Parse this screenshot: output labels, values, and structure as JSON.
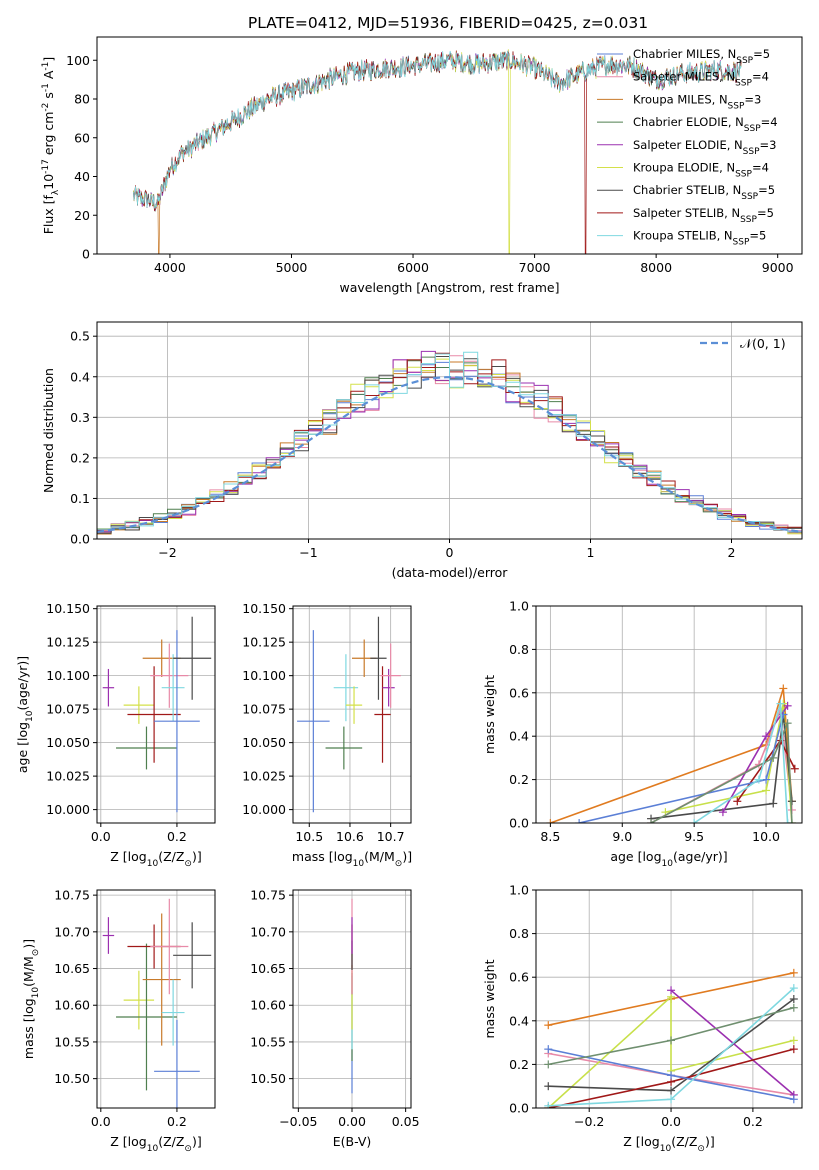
{
  "figure_title": "PLATE=0412, MJD=51936, FIBERID=0425, z=0.031",
  "colors": {
    "Chabrier MILES": "#5b7fd6",
    "Salpeter MILES": "#e88aa8",
    "Kroupa MILES": "#c87a2a",
    "Chabrier ELODIE": "#4f7f4f",
    "Salpeter ELODIE": "#9b30b0",
    "Kroupa ELODIE": "#d4e04a",
    "Chabrier STELIB": "#4a4a4a",
    "Salpeter STELIB": "#a01818",
    "Kroupa STELIB": "#7fd8e0",
    "normal": "#5b8fd6",
    "weight_line_1": "#e07b20",
    "weight_line_2": "#e88aa8",
    "weight_line_3": "#c8e04a",
    "weight_line_4": "#4a4a4a",
    "weight_line_5": "#9b30b0",
    "weight_line_6": "#a01818",
    "weight_line_7": "#5b7fd6",
    "weight_line_8": "#6f8f6f",
    "weight_line_9": "#7fd8e0"
  },
  "chart_data": [
    {
      "id": "spectrum",
      "type": "line",
      "xlabel": "wavelength [Angstrom, rest frame]",
      "ylabel": "Flux [f",
      "ylabel_sub": "λ",
      "ylabel_tail": "10",
      "ylabel_exp1": "-17",
      "ylabel_unit": " erg cm",
      "ylabel_exp2": "-2",
      "ylabel_unit2": " s",
      "ylabel_exp3": "-1",
      "ylabel_unit3": " A",
      "ylabel_exp4": "-1",
      "ylabel_close": "]",
      "xlim": [
        3400,
        9200
      ],
      "ylim": [
        0,
        112
      ],
      "xticks": [
        "4000",
        "5000",
        "6000",
        "7000",
        "8000",
        "9000"
      ],
      "xtick_values": [
        4000,
        5000,
        6000,
        7000,
        8000,
        9000
      ],
      "yticks": [
        "0",
        "20",
        "40",
        "60",
        "80",
        "100"
      ],
      "ytick_values": [
        0,
        20,
        40,
        60,
        80,
        100
      ],
      "legend_position": "top-right",
      "continuum": {
        "x": [
          3700,
          3900,
          4000,
          4100,
          4300,
          4500,
          4800,
          5000,
          5200,
          5500,
          5800,
          6000,
          6300,
          6500,
          6800,
          7000,
          7200,
          7400,
          7600,
          7800,
          8000,
          8200,
          8500,
          8700
        ],
        "y": [
          30,
          26,
          44,
          52,
          60,
          68,
          80,
          84,
          88,
          94,
          96,
          97,
          100,
          98,
          100,
          96,
          88,
          94,
          98,
          97,
          90,
          93,
          95,
          94
        ]
      },
      "gaps": [
        {
          "x": 3910,
          "series": "Kroupa MILES"
        },
        {
          "x": 6790,
          "series": "Kroupa ELODIE"
        },
        {
          "x": 7420,
          "series": "Salpeter STELIB"
        }
      ],
      "legend": [
        {
          "name": "Chabrier MILES",
          "label": "Chabrier MILES, N",
          "sub": "SSP",
          "tail": "=5"
        },
        {
          "name": "Salpeter MILES",
          "label": "Salpeter MILES, N",
          "sub": "SSP",
          "tail": "=4"
        },
        {
          "name": "Kroupa MILES",
          "label": "Kroupa MILES, N",
          "sub": "SSP",
          "tail": "=3"
        },
        {
          "name": "Chabrier ELODIE",
          "label": "Chabrier ELODIE, N",
          "sub": "SSP",
          "tail": "=4"
        },
        {
          "name": "Salpeter ELODIE",
          "label": "Salpeter ELODIE, N",
          "sub": "SSP",
          "tail": "=3"
        },
        {
          "name": "Kroupa ELODIE",
          "label": "Kroupa ELODIE, N",
          "sub": "SSP",
          "tail": "=4"
        },
        {
          "name": "Chabrier STELIB",
          "label": "Chabrier STELIB, N",
          "sub": "SSP",
          "tail": "=5"
        },
        {
          "name": "Salpeter STELIB",
          "label": "Salpeter STELIB, N",
          "sub": "SSP",
          "tail": "=5"
        },
        {
          "name": "Kroupa STELIB",
          "label": "Kroupa STELIB, N",
          "sub": "SSP",
          "tail": "=5"
        }
      ]
    },
    {
      "id": "residuals",
      "type": "histogram",
      "xlabel": "(data-model)/error",
      "ylabel": "Normed distribution",
      "xlim": [
        -2.5,
        2.5
      ],
      "ylim": [
        0,
        0.535
      ],
      "xticks": [
        "−2",
        "−1",
        "0",
        "1",
        "2"
      ],
      "xtick_values": [
        -2,
        -1,
        0,
        1,
        2
      ],
      "yticks": [
        "0.0",
        "0.1",
        "0.2",
        "0.3",
        "0.4",
        "0.5"
      ],
      "ytick_values": [
        0,
        0.1,
        0.2,
        0.3,
        0.4,
        0.5
      ],
      "grid": true,
      "legend_position": "top-right",
      "normal_label": "𝒩(0, 1)",
      "bin_width": 0.1
    },
    {
      "id": "age_vs_Z",
      "type": "errorbar",
      "xlabel": "Z [log",
      "xlabel_sub": "10",
      "xlabel_tail": "(Z/Z",
      "xlabel_tail_sub": "⊙",
      "xlabel_close": ")]",
      "ylabel": "age  [log",
      "ylabel_sub": "10",
      "ylabel_tail": "(age/yr)]",
      "xlim": [
        -0.01,
        0.3
      ],
      "ylim": [
        9.99,
        10.152
      ],
      "xticks": [
        "0.0",
        "0.2"
      ],
      "xtick_values": [
        0,
        0.2
      ],
      "yticks": [
        "10.000",
        "10.025",
        "10.050",
        "10.075",
        "10.100",
        "10.125",
        "10.150"
      ],
      "ytick_values": [
        10.0,
        10.025,
        10.05,
        10.075,
        10.1,
        10.125,
        10.15
      ],
      "grid": true,
      "points": [
        {
          "series": "Salpeter ELODIE",
          "x": 0.02,
          "xerr": 0.015,
          "y": 10.091,
          "yerr": 0.014
        },
        {
          "series": "Kroupa ELODIE",
          "x": 0.1,
          "xerr": 0.04,
          "y": 10.078,
          "yerr": 0.014
        },
        {
          "series": "Chabrier ELODIE",
          "x": 0.12,
          "xerr": 0.08,
          "y": 10.046,
          "yerr": 0.016
        },
        {
          "series": "Salpeter STELIB",
          "x": 0.14,
          "xerr": 0.07,
          "y": 10.071,
          "yerr": 0.036
        },
        {
          "series": "Kroupa MILES",
          "x": 0.16,
          "xerr": 0.05,
          "y": 10.113,
          "yerr": 0.014
        },
        {
          "series": "Salpeter MILES",
          "x": 0.18,
          "xerr": 0.05,
          "y": 10.1,
          "yerr": 0.024
        },
        {
          "series": "Kroupa STELIB",
          "x": 0.19,
          "xerr": 0.03,
          "y": 10.091,
          "yerr": 0.025
        },
        {
          "series": "Chabrier MILES",
          "x": 0.2,
          "xerr": 0.06,
          "y": 10.066,
          "yerr": 0.068
        },
        {
          "series": "Chabrier STELIB",
          "x": 0.24,
          "xerr": 0.05,
          "y": 10.113,
          "yerr": 0.031
        }
      ]
    },
    {
      "id": "age_vs_mass",
      "type": "errorbar",
      "xlabel": "mass [log",
      "xlabel_sub": "10",
      "xlabel_tail": "(M/M",
      "xlabel_tail_sub": "⊙",
      "xlabel_close": ")]",
      "xlim": [
        10.46,
        10.75
      ],
      "ylim": [
        9.99,
        10.152
      ],
      "xticks": [
        "10.5",
        "10.6",
        "10.7"
      ],
      "xtick_values": [
        10.5,
        10.6,
        10.7
      ],
      "yticks": [
        "10.000",
        "10.025",
        "10.050",
        "10.075",
        "10.100",
        "10.125",
        "10.150"
      ],
      "ytick_values": [
        10.0,
        10.025,
        10.05,
        10.075,
        10.1,
        10.125,
        10.15
      ],
      "grid": true,
      "points": [
        {
          "series": "Chabrier MILES",
          "x": 10.51,
          "xerr": 0.04,
          "y": 10.066,
          "yerr": 0.068
        },
        {
          "series": "Chabrier ELODIE",
          "x": 10.585,
          "xerr": 0.045,
          "y": 10.046,
          "yerr": 0.016
        },
        {
          "series": "Kroupa STELIB",
          "x": 10.59,
          "xerr": 0.03,
          "y": 10.091,
          "yerr": 0.025
        },
        {
          "series": "Kroupa ELODIE",
          "x": 10.61,
          "xerr": 0.02,
          "y": 10.078,
          "yerr": 0.014
        },
        {
          "series": "Kroupa MILES",
          "x": 10.635,
          "xerr": 0.03,
          "y": 10.113,
          "yerr": 0.014
        },
        {
          "series": "Salpeter STELIB",
          "x": 10.68,
          "xerr": 0.02,
          "y": 10.071,
          "yerr": 0.036
        },
        {
          "series": "Chabrier STELIB",
          "x": 10.67,
          "xerr": 0.02,
          "y": 10.113,
          "yerr": 0.031
        },
        {
          "series": "Salpeter ELODIE",
          "x": 10.695,
          "xerr": 0.015,
          "y": 10.091,
          "yerr": 0.014
        },
        {
          "series": "Salpeter MILES",
          "x": 10.7,
          "xerr": 0.025,
          "y": 10.1,
          "yerr": 0.024
        }
      ]
    },
    {
      "id": "weight_vs_age",
      "type": "line",
      "xlabel": "age  [log",
      "xlabel_sub": "10",
      "xlabel_tail": "(age/yr)]",
      "ylabel": "mass weight",
      "xlim": [
        8.4,
        10.25
      ],
      "ylim": [
        0,
        1
      ],
      "xticks": [
        "8.5",
        "9.0",
        "9.5",
        "10.0"
      ],
      "xtick_values": [
        8.5,
        9.0,
        9.5,
        10.0
      ],
      "yticks": [
        "0.0",
        "0.2",
        "0.4",
        "0.6",
        "0.8",
        "1.0"
      ],
      "ytick_values": [
        0,
        0.2,
        0.4,
        0.6,
        0.8,
        1.0
      ],
      "grid": true,
      "series": [
        {
          "color": "weight_line_1",
          "x": [
            8.5,
            10.0,
            10.12,
            10.18
          ],
          "y": [
            0.0,
            0.36,
            0.62,
            0.1
          ]
        },
        {
          "color": "weight_line_2",
          "x": [
            9.2,
            9.95,
            10.1,
            10.18
          ],
          "y": [
            0.0,
            0.27,
            0.52,
            0.06
          ]
        },
        {
          "color": "weight_line_3",
          "x": [
            9.3,
            10.0,
            10.12,
            10.18
          ],
          "y": [
            0.05,
            0.15,
            0.55,
            0.0
          ]
        },
        {
          "color": "weight_line_4",
          "x": [
            9.2,
            10.05,
            10.12,
            10.18
          ],
          "y": [
            0.02,
            0.09,
            0.5,
            0.1
          ]
        },
        {
          "color": "weight_line_5",
          "x": [
            9.7,
            10.0,
            10.15
          ],
          "y": [
            0.05,
            0.4,
            0.54
          ]
        },
        {
          "color": "weight_line_6",
          "x": [
            9.8,
            10.1,
            10.2
          ],
          "y": [
            0.1,
            0.38,
            0.25
          ]
        },
        {
          "color": "weight_line_7",
          "x": [
            8.7,
            10.0,
            10.12
          ],
          "y": [
            0.0,
            0.2,
            0.5
          ]
        },
        {
          "color": "weight_line_8",
          "x": [
            9.2,
            10.05,
            10.15,
            10.18
          ],
          "y": [
            0.0,
            0.3,
            0.46,
            0.0
          ]
        },
        {
          "color": "weight_line_9",
          "x": [
            9.5,
            9.95,
            10.1,
            10.15
          ],
          "y": [
            0.0,
            0.2,
            0.55,
            0.0
          ]
        }
      ]
    },
    {
      "id": "mass_vs_Z",
      "type": "errorbar",
      "xlabel": "Z [log",
      "xlabel_sub": "10",
      "xlabel_tail": "(Z/Z",
      "xlabel_tail_sub": "⊙",
      "xlabel_close": ")]",
      "ylabel": "mass [log",
      "ylabel_sub": "10",
      "ylabel_tail": "(M/M",
      "ylabel_tail_sub": "⊙",
      "ylabel_close": ")]",
      "xlim": [
        -0.01,
        0.3
      ],
      "ylim": [
        10.46,
        10.757
      ],
      "xticks": [
        "0.0",
        "0.2"
      ],
      "xtick_values": [
        0,
        0.2
      ],
      "yticks": [
        "10.50",
        "10.55",
        "10.60",
        "10.65",
        "10.70",
        "10.75"
      ],
      "ytick_values": [
        10.5,
        10.55,
        10.6,
        10.65,
        10.7,
        10.75
      ],
      "grid": true,
      "points": [
        {
          "series": "Salpeter ELODIE",
          "x": 0.02,
          "xerr": 0.015,
          "y": 10.695,
          "yerr": 0.025
        },
        {
          "series": "Kroupa ELODIE",
          "x": 0.1,
          "xerr": 0.04,
          "y": 10.607,
          "yerr": 0.04
        },
        {
          "series": "Chabrier ELODIE",
          "x": 0.12,
          "xerr": 0.08,
          "y": 10.584,
          "yerr": 0.1
        },
        {
          "series": "Salpeter STELIB",
          "x": 0.14,
          "xerr": 0.07,
          "y": 10.68,
          "yerr": 0.03
        },
        {
          "series": "Kroupa MILES",
          "x": 0.16,
          "xerr": 0.05,
          "y": 10.635,
          "yerr": 0.09
        },
        {
          "series": "Salpeter MILES",
          "x": 0.18,
          "xerr": 0.05,
          "y": 10.68,
          "yerr": 0.065
        },
        {
          "series": "Kroupa STELIB",
          "x": 0.19,
          "xerr": 0.03,
          "y": 10.59,
          "yerr": 0.045
        },
        {
          "series": "Chabrier MILES",
          "x": 0.2,
          "xerr": 0.06,
          "y": 10.51,
          "yerr": 0.07
        },
        {
          "series": "Chabrier STELIB",
          "x": 0.24,
          "xerr": 0.05,
          "y": 10.668,
          "yerr": 0.045
        }
      ]
    },
    {
      "id": "mass_vs_EBV",
      "type": "errorbar",
      "xlabel": "E(B-V)",
      "xlim": [
        -0.055,
        0.055
      ],
      "ylim": [
        10.46,
        10.757
      ],
      "xticks": [
        "−0.05",
        "0.00",
        "0.05"
      ],
      "xtick_values": [
        -0.05,
        0.0,
        0.05
      ],
      "yticks": [
        "10.50",
        "10.55",
        "10.60",
        "10.65",
        "10.70",
        "10.75"
      ],
      "ytick_values": [
        10.5,
        10.55,
        10.6,
        10.65,
        10.7,
        10.75
      ],
      "grid": true,
      "points": [
        {
          "series": "Chabrier MILES",
          "x": 0,
          "xerr": 0,
          "y": 10.51,
          "yerr": 0.03
        },
        {
          "series": "Chabrier ELODIE",
          "x": 0,
          "xerr": 0,
          "y": 10.584,
          "yerr": 0.06
        },
        {
          "series": "Kroupa STELIB",
          "x": 0,
          "xerr": 0,
          "y": 10.59,
          "yerr": 0.05
        },
        {
          "series": "Kroupa ELODIE",
          "x": 0,
          "xerr": 0,
          "y": 10.607,
          "yerr": 0.04
        },
        {
          "series": "Kroupa MILES",
          "x": 0,
          "xerr": 0,
          "y": 10.635,
          "yerr": 0.02
        },
        {
          "series": "Salpeter MILES",
          "x": 0,
          "xerr": 0,
          "y": 10.68,
          "yerr": 0.065
        },
        {
          "series": "Salpeter STELIB",
          "x": 0,
          "xerr": 0,
          "y": 10.68,
          "yerr": 0.03
        },
        {
          "series": "Chabrier STELIB",
          "x": 0,
          "xerr": 0,
          "y": 10.668,
          "yerr": 0.02
        },
        {
          "series": "Salpeter ELODIE",
          "x": 0,
          "xerr": 0,
          "y": 10.695,
          "yerr": 0.025
        }
      ]
    },
    {
      "id": "weight_vs_Z",
      "type": "line",
      "xlabel": "Z [log",
      "xlabel_sub": "10",
      "xlabel_tail": "(Z/Z",
      "xlabel_tail_sub": "⊙",
      "xlabel_close": ")]",
      "ylabel": "mass weight",
      "xlim": [
        -0.33,
        0.32
      ],
      "ylim": [
        0,
        1
      ],
      "xticks": [
        "−0.2",
        "0.0",
        "0.2"
      ],
      "xtick_values": [
        -0.2,
        0.0,
        0.2
      ],
      "yticks": [
        "0.0",
        "0.2",
        "0.4",
        "0.6",
        "0.8",
        "1.0"
      ],
      "ytick_values": [
        0,
        0.2,
        0.4,
        0.6,
        0.8,
        1.0
      ],
      "grid": true,
      "series": [
        {
          "color": "weight_line_1",
          "x": [
            -0.3,
            0.0,
            0.3
          ],
          "y": [
            0.38,
            0.5,
            0.62
          ]
        },
        {
          "color": "weight_line_2",
          "x": [
            -0.3,
            0.0,
            0.3
          ],
          "y": [
            0.25,
            0.15,
            0.06
          ]
        },
        {
          "color": "weight_line_3",
          "x": [
            -0.3,
            0.0,
            0.0,
            0.3
          ],
          "y": [
            0.0,
            0.51,
            0.17,
            0.31
          ]
        },
        {
          "color": "weight_line_4",
          "x": [
            -0.3,
            0.0,
            0.3
          ],
          "y": [
            0.1,
            0.08,
            0.5
          ]
        },
        {
          "color": "weight_line_5",
          "x": [
            0.0,
            0.3
          ],
          "y": [
            0.54,
            0.06
          ]
        },
        {
          "color": "weight_line_6",
          "x": [
            -0.3,
            0.0,
            0.3
          ],
          "y": [
            0.0,
            0.12,
            0.27
          ]
        },
        {
          "color": "weight_line_7",
          "x": [
            -0.3,
            0.0,
            0.3
          ],
          "y": [
            0.27,
            0.15,
            0.04
          ]
        },
        {
          "color": "weight_line_8",
          "x": [
            -0.3,
            0.0,
            0.3
          ],
          "y": [
            0.2,
            0.31,
            0.46
          ]
        },
        {
          "color": "weight_line_9",
          "x": [
            -0.3,
            0.0,
            0.3
          ],
          "y": [
            0.01,
            0.04,
            0.55
          ]
        }
      ]
    }
  ]
}
